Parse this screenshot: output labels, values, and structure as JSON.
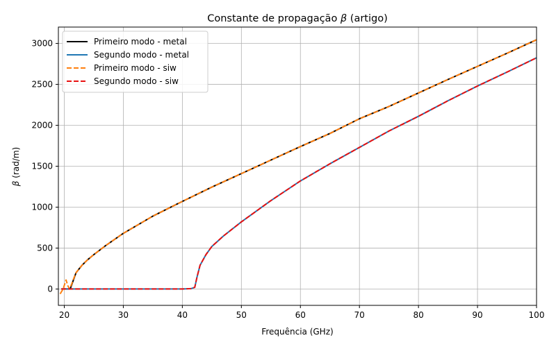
{
  "chart_data": {
    "type": "line",
    "title_main": "Constante de propagação ",
    "title_symbol": "β",
    "title_suffix": " (artigo)",
    "xlabel": "Frequência (GHz)",
    "ylabel_symbol": "β",
    "ylabel_suffix": " (rad/m)",
    "xlim": [
      19,
      100
    ],
    "ylim": [
      -200,
      3200
    ],
    "xticks": [
      20,
      30,
      40,
      50,
      60,
      70,
      80,
      90,
      100
    ],
    "yticks": [
      0,
      500,
      1000,
      1500,
      2000,
      2500,
      3000
    ],
    "grid": true,
    "legend_position": "top-left",
    "series": [
      {
        "name": "Primeiro modo - metal",
        "color": "#000000",
        "style": "solid",
        "x": [
          19.5,
          20,
          20.5,
          21,
          21.2,
          21.6,
          22,
          23,
          24,
          25,
          27,
          30,
          35,
          40,
          45,
          50,
          55,
          60,
          65,
          70,
          75,
          80,
          85,
          90,
          95,
          100
        ],
        "y": [
          0,
          0,
          0,
          0,
          40,
          120,
          200,
          290,
          360,
          420,
          530,
          680,
          890,
          1070,
          1245,
          1410,
          1575,
          1740,
          1900,
          2080,
          2230,
          2395,
          2560,
          2720,
          2880,
          3045
        ]
      },
      {
        "name": "Segundo modo - metal",
        "color": "#1f77b4",
        "style": "solid",
        "x": [
          19.5,
          25,
          30,
          35,
          40,
          41.5,
          42.1,
          42.5,
          43,
          44,
          45,
          47,
          50,
          55,
          60,
          65,
          70,
          75,
          80,
          85,
          90,
          95,
          100
        ],
        "y": [
          0,
          0,
          0,
          0,
          0,
          5,
          20,
          150,
          290,
          420,
          520,
          650,
          820,
          1080,
          1320,
          1530,
          1730,
          1930,
          2110,
          2300,
          2480,
          2650,
          2825
        ]
      },
      {
        "name": "Primeiro modo - siw",
        "color": "#ff7f0e",
        "style": "dashed",
        "x": [
          19.3,
          19.8,
          20.3,
          20.6,
          20.9,
          21.3,
          21.6,
          22,
          23,
          24,
          25,
          27,
          30,
          35,
          40,
          45,
          50,
          55,
          60,
          65,
          70,
          75,
          80,
          85,
          90,
          95,
          100
        ],
        "y": [
          -60,
          0,
          110,
          40,
          0,
          70,
          130,
          200,
          290,
          360,
          420,
          530,
          680,
          890,
          1070,
          1245,
          1410,
          1575,
          1740,
          1900,
          2080,
          2230,
          2395,
          2560,
          2720,
          2880,
          3045
        ]
      },
      {
        "name": "Segundo modo - siw",
        "color": "#e81010",
        "style": "dashed",
        "x": [
          19.5,
          25,
          30,
          35,
          40,
          41.5,
          42.1,
          42.5,
          43,
          44,
          45,
          47,
          50,
          55,
          60,
          65,
          70,
          75,
          80,
          85,
          90,
          95,
          100
        ],
        "y": [
          0,
          0,
          0,
          0,
          0,
          5,
          20,
          150,
          290,
          420,
          520,
          650,
          820,
          1080,
          1320,
          1530,
          1730,
          1930,
          2110,
          2300,
          2480,
          2650,
          2825
        ]
      }
    ]
  }
}
